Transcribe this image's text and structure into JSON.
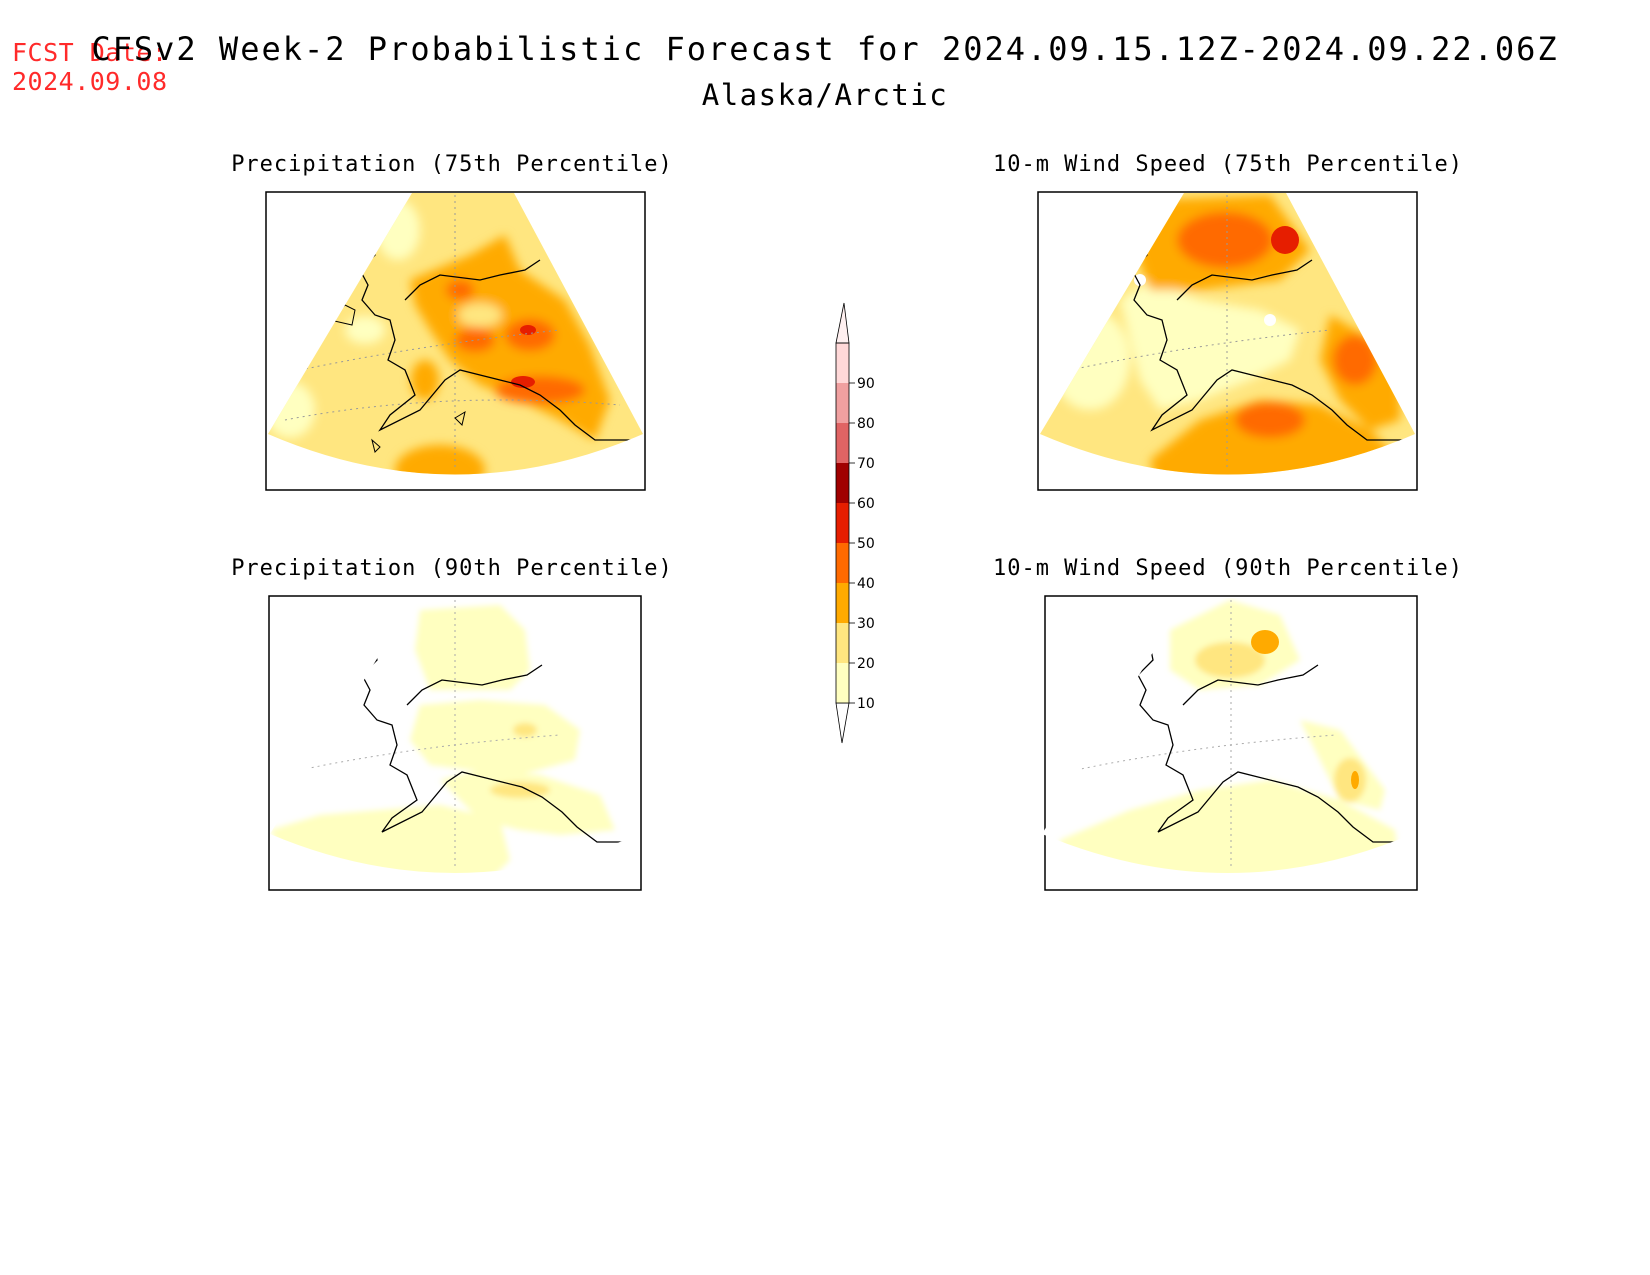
{
  "header": {
    "fcst_label": "FCST Date:",
    "fcst_date": "2024.09.08",
    "title": "CFSv2 Week-2 Probabilistic Forecast for 2024.09.15.12Z-2024.09.22.06Z",
    "region": "Alaska/Arctic"
  },
  "panels": [
    {
      "id": "precip75",
      "title": "Precipitation (75th Percentile)"
    },
    {
      "id": "wind75",
      "title": "10-m Wind Speed (75th Percentile)"
    },
    {
      "id": "precip90",
      "title": "Precipitation (90th Percentile)"
    },
    {
      "id": "wind90",
      "title": "10-m Wind Speed (90th Percentile)"
    }
  ],
  "colorbar": {
    "levels": [
      "10",
      "20",
      "30",
      "40",
      "50",
      "60",
      "70",
      "80",
      "90"
    ],
    "colors": [
      "#ffffc0",
      "#ffe680",
      "#ffaa00",
      "#ff6a00",
      "#e61e00",
      "#a00000",
      "#e06464",
      "#f0a0a0",
      "#ffd8d8"
    ]
  }
}
